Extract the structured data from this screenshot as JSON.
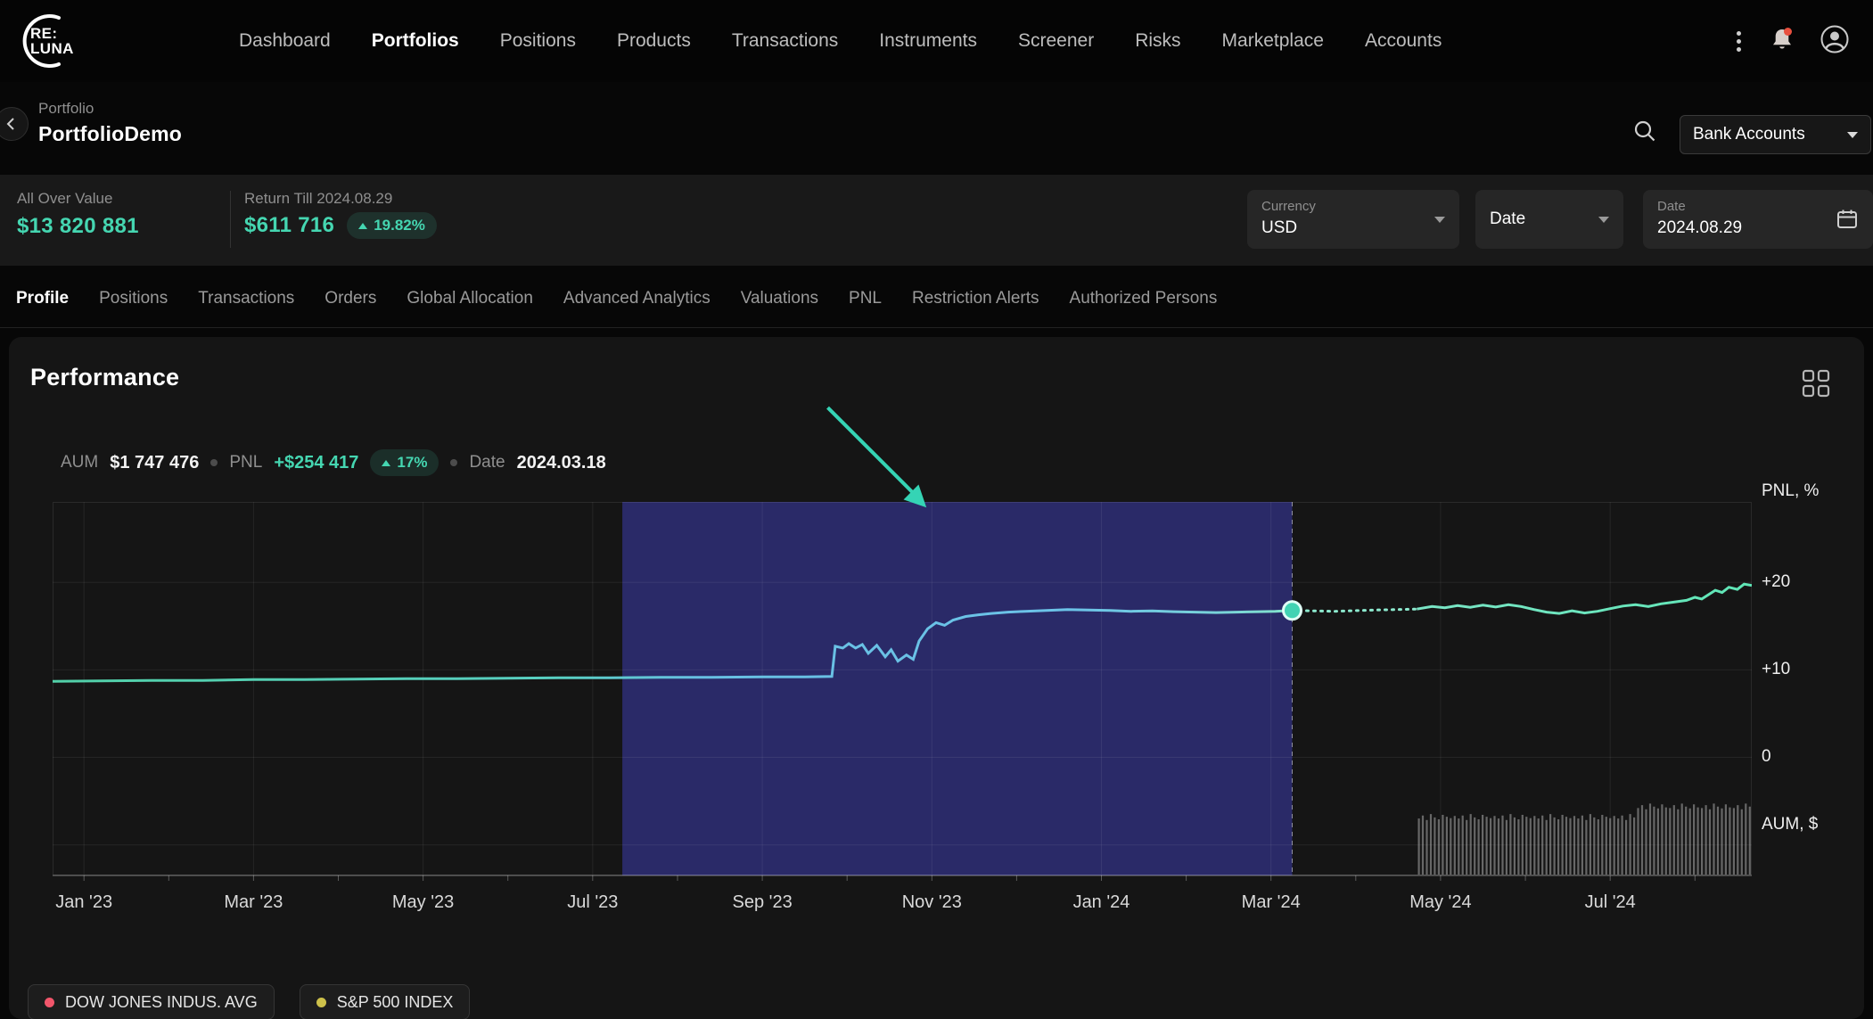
{
  "brand": {
    "line1": "RE:",
    "line2": "LUNA"
  },
  "nav": {
    "items": [
      "Dashboard",
      "Portfolios",
      "Positions",
      "Products",
      "Transactions",
      "Instruments",
      "Screener",
      "Risks",
      "Marketplace",
      "Accounts"
    ],
    "active": "Portfolios"
  },
  "header": {
    "eyebrow": "Portfolio",
    "title": "PortfolioDemo",
    "bank_accounts": "Bank Accounts"
  },
  "summary": {
    "all_over_value_label": "All Over Value",
    "all_over_value": "$13 820 881",
    "return_label": "Return Till 2024.08.29",
    "return_value": "$611 716",
    "return_pct": "19.82%",
    "currency_label": "Currency",
    "currency_value": "USD",
    "date_dropdown_label": "Date",
    "date_field_label": "Date",
    "date_field_value": "2024.08.29"
  },
  "tabs": {
    "items": [
      "Profile",
      "Positions",
      "Transactions",
      "Orders",
      "Global Allocation",
      "Advanced Analytics",
      "Valuations",
      "PNL",
      "Restriction Alerts",
      "Authorized Persons"
    ],
    "active": "Profile"
  },
  "performance": {
    "title": "Performance",
    "tooltip": {
      "aum_label": "AUM",
      "aum_value": "$1 747 476",
      "pnl_label": "PNL",
      "pnl_value": "+$254 417",
      "pnl_pct": "17%",
      "date_label": "Date",
      "date_value": "2024.03.18"
    }
  },
  "legend": [
    {
      "label": "DOW JONES INDUS. AVG",
      "color": "#f2566b"
    },
    {
      "label": "S&P 500 INDEX",
      "color": "#cdc04a"
    }
  ],
  "colors": {
    "accent_teal": "#45d6b1",
    "highlight_indigo": "#4040bb",
    "alert_red": "#e8503f"
  },
  "icons": [
    "kebab-menu-icon",
    "bell-icon",
    "avatar-icon",
    "back-chevron-icon",
    "search-icon",
    "dropdown-chevron-icon",
    "calendar-icon",
    "grid-layout-icon",
    "cursor-arrow-annotation",
    "legend-dot"
  ],
  "chart_data": {
    "type": "line",
    "title": "Performance",
    "y_axis_label": "PNL, %",
    "y2_axis_label": "AUM, $",
    "y_tick_labels": [
      "+20",
      "+10",
      "0"
    ],
    "y_tick_values": [
      20,
      10,
      0
    ],
    "y_grid_pct": [
      20,
      10,
      0,
      -10
    ],
    "y_range_pct": [
      -13.5,
      29.2
    ],
    "x_tick_labels": [
      "Jan '23",
      "Mar '23",
      "May '23",
      "Jul '23",
      "Sep '23",
      "Nov '23",
      "Jan '24",
      "Mar '24",
      "May '24",
      "Jul '24"
    ],
    "x_tick_months": [
      0,
      2,
      4,
      6,
      8,
      10,
      12,
      14,
      16,
      18
    ],
    "x_range_months": [
      -0.37,
      19.67
    ],
    "grid": true,
    "legend_position": "bottom-left",
    "highlight_region_months": [
      6.35,
      14.25
    ],
    "highlight_color": "#4040bb",
    "marker": {
      "month": 14.25,
      "pnl_pct": 16.8,
      "aum": "$1 747 476",
      "pnl": "+$254 417",
      "pnl_pct_label": "17%",
      "date": "2024.03.18"
    },
    "solid_resume_month": 15.72,
    "line_gradient": [
      [
        0,
        "#52d0a8"
      ],
      [
        0.3,
        "#58cfc2"
      ],
      [
        0.38,
        "#67bfe2"
      ],
      [
        0.6,
        "#6cc3e8"
      ],
      [
        0.69,
        "#79d4d8"
      ],
      [
        0.73,
        "#84e4cb"
      ],
      [
        1,
        "#5fe6b6"
      ]
    ],
    "series": [
      {
        "name": "Portfolio PNL %",
        "points": [
          [
            -0.37,
            8.7
          ],
          [
            0.2,
            8.75
          ],
          [
            0.8,
            8.8
          ],
          [
            1.4,
            8.8
          ],
          [
            2.0,
            8.9
          ],
          [
            2.6,
            8.9
          ],
          [
            3.2,
            8.95
          ],
          [
            3.8,
            9.0
          ],
          [
            4.4,
            9.0
          ],
          [
            5.0,
            9.05
          ],
          [
            5.6,
            9.1
          ],
          [
            6.2,
            9.1
          ],
          [
            6.8,
            9.15
          ],
          [
            7.4,
            9.15
          ],
          [
            8.0,
            9.2
          ],
          [
            8.5,
            9.2
          ],
          [
            8.82,
            9.25
          ],
          [
            8.86,
            12.7
          ],
          [
            8.95,
            12.5
          ],
          [
            9.02,
            13.0
          ],
          [
            9.1,
            12.5
          ],
          [
            9.18,
            12.9
          ],
          [
            9.25,
            11.9
          ],
          [
            9.35,
            12.8
          ],
          [
            9.45,
            11.5
          ],
          [
            9.52,
            12.3
          ],
          [
            9.6,
            11.0
          ],
          [
            9.7,
            11.7
          ],
          [
            9.78,
            11.2
          ],
          [
            9.85,
            13.3
          ],
          [
            9.95,
            14.7
          ],
          [
            10.05,
            15.4
          ],
          [
            10.15,
            15.1
          ],
          [
            10.25,
            15.7
          ],
          [
            10.4,
            16.1
          ],
          [
            10.55,
            16.3
          ],
          [
            10.7,
            16.45
          ],
          [
            10.9,
            16.6
          ],
          [
            11.1,
            16.7
          ],
          [
            11.35,
            16.8
          ],
          [
            11.6,
            16.9
          ],
          [
            11.85,
            16.85
          ],
          [
            12.1,
            16.8
          ],
          [
            12.35,
            16.7
          ],
          [
            12.6,
            16.75
          ],
          [
            12.85,
            16.65
          ],
          [
            13.1,
            16.6
          ],
          [
            13.35,
            16.55
          ],
          [
            13.6,
            16.6
          ],
          [
            13.85,
            16.65
          ],
          [
            14.05,
            16.7
          ],
          [
            14.25,
            16.8
          ],
          [
            14.5,
            16.75
          ],
          [
            14.75,
            16.7
          ],
          [
            15.0,
            16.78
          ],
          [
            15.25,
            16.85
          ],
          [
            15.5,
            16.9
          ],
          [
            15.72,
            16.95
          ],
          [
            15.9,
            17.25
          ],
          [
            16.05,
            17.1
          ],
          [
            16.2,
            17.35
          ],
          [
            16.35,
            17.15
          ],
          [
            16.5,
            17.4
          ],
          [
            16.65,
            17.2
          ],
          [
            16.8,
            17.45
          ],
          [
            16.95,
            17.25
          ],
          [
            17.1,
            16.9
          ],
          [
            17.25,
            16.6
          ],
          [
            17.4,
            16.45
          ],
          [
            17.55,
            16.75
          ],
          [
            17.7,
            16.5
          ],
          [
            17.85,
            16.7
          ],
          [
            18.0,
            17.0
          ],
          [
            18.15,
            17.3
          ],
          [
            18.3,
            17.45
          ],
          [
            18.45,
            17.25
          ],
          [
            18.6,
            17.55
          ],
          [
            18.75,
            17.75
          ],
          [
            18.9,
            17.95
          ],
          [
            19.0,
            18.3
          ],
          [
            19.08,
            18.1
          ],
          [
            19.16,
            18.6
          ],
          [
            19.24,
            19.1
          ],
          [
            19.32,
            18.85
          ],
          [
            19.4,
            19.45
          ],
          [
            19.5,
            19.2
          ],
          [
            19.58,
            19.8
          ],
          [
            19.67,
            19.65
          ]
        ]
      }
    ],
    "aum_bars": {
      "start_month": 15.72,
      "end_month": 19.67,
      "color": "rgba(205,205,205,0.45)",
      "segments": [
        {
          "count": 55,
          "heights_cycle": [
            0.15,
            0.158,
            0.146,
            0.162,
            0.153,
            0.148,
            0.16,
            0.155,
            0.151,
            0.157
          ]
        },
        {
          "count": 29,
          "heights_cycle": [
            0.178,
            0.186,
            0.175,
            0.19,
            0.182,
            0.177,
            0.188,
            0.18
          ]
        }
      ]
    }
  }
}
